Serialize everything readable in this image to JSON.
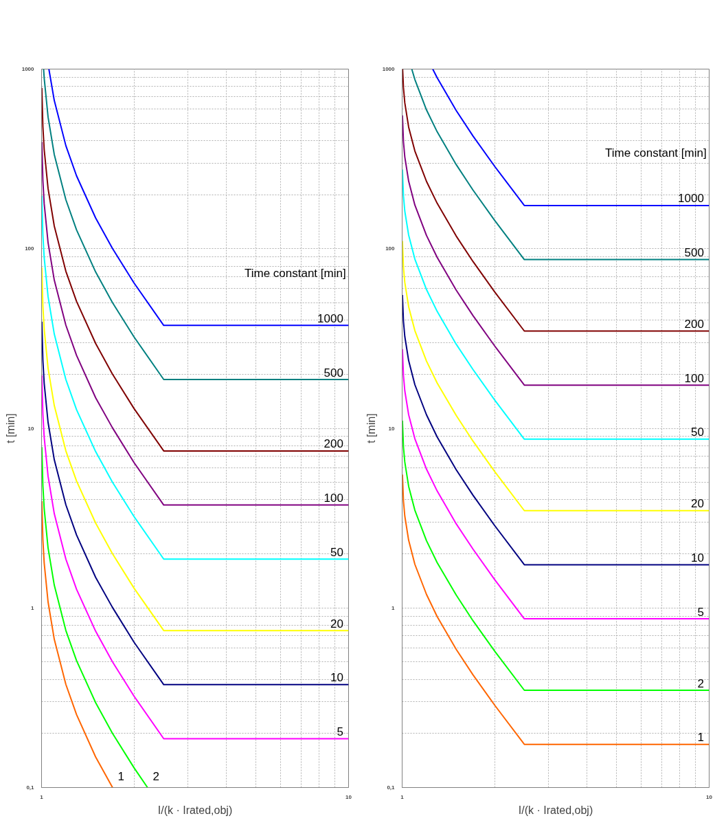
{
  "chart_data": [
    {
      "type": "line",
      "xlabel": "I/(k · Irated,obj)",
      "ylabel": "t [min]",
      "legend_title": "Time constant [min]",
      "log": "xy",
      "grid": true,
      "xlim": [
        1,
        10
      ],
      "ylim": [
        0.1,
        1000
      ],
      "xticks": [
        1,
        10
      ],
      "yticks": [
        {
          "value": 0.1,
          "label": "0,1"
        },
        1,
        10,
        100,
        1000
      ],
      "series": [
        {
          "name": "1000",
          "color": "#0000ff",
          "x": [
            1.0566,
            1.1,
            1.2,
            1.3,
            1.5,
            1.7,
            2,
            2.5,
            10
          ],
          "values": [
            1000,
            669,
            374.7,
            254.6,
            148.4,
            100.6,
            64.5,
            37.4,
            37.4
          ]
        },
        {
          "name": "500",
          "color": "#008080",
          "x": [
            1.0155,
            1.02,
            1.05,
            1.1,
            1.2,
            1.3,
            1.5,
            1.7,
            2,
            2.5,
            10
          ],
          "values": [
            1000,
            891.5,
            541,
            334.5,
            187.4,
            127.3,
            74.2,
            50.3,
            32.3,
            18.7,
            18.7
          ]
        },
        {
          "name": "200",
          "color": "#800000",
          "x": [
            1.002,
            1.01,
            1.02,
            1.05,
            1.1,
            1.2,
            1.3,
            1.5,
            1.7,
            2,
            2.5,
            10
          ],
          "values": [
            786,
            478.6,
            356.6,
            216.4,
            133.8,
            74.9,
            50.9,
            29.7,
            20.1,
            12.9,
            7.48,
            7.48
          ]
        },
        {
          "name": "100",
          "color": "#800080",
          "x": [
            1.002,
            1.01,
            1.02,
            1.05,
            1.1,
            1.2,
            1.3,
            1.5,
            1.7,
            2,
            2.5,
            10
          ],
          "values": [
            393,
            239.3,
            178.3,
            108.2,
            66.9,
            37.5,
            25.5,
            14.8,
            10.1,
            6.45,
            3.74,
            3.74
          ]
        },
        {
          "name": "50",
          "color": "#00ffff",
          "x": [
            1.002,
            1.01,
            1.02,
            1.05,
            1.1,
            1.2,
            1.3,
            1.5,
            1.7,
            2,
            2.5,
            10
          ],
          "values": [
            197,
            119.7,
            89.2,
            54.1,
            33.5,
            18.7,
            12.7,
            7.42,
            5.03,
            3.23,
            1.87,
            1.87
          ]
        },
        {
          "name": "20",
          "color": "#ffff00",
          "x": [
            1.002,
            1.01,
            1.02,
            1.05,
            1.1,
            1.2,
            1.3,
            1.5,
            1.7,
            2,
            2.5,
            10
          ],
          "values": [
            78.6,
            47.9,
            35.7,
            21.6,
            13.4,
            7.49,
            5.09,
            2.97,
            2.01,
            1.29,
            0.748,
            0.748
          ]
        },
        {
          "name": "10",
          "color": "#000080",
          "x": [
            1.002,
            1.01,
            1.02,
            1.05,
            1.1,
            1.2,
            1.3,
            1.5,
            1.7,
            2,
            2.5,
            10
          ],
          "values": [
            39.3,
            23.9,
            17.8,
            10.8,
            6.69,
            3.75,
            2.55,
            1.48,
            1.01,
            0.645,
            0.374,
            0.374
          ]
        },
        {
          "name": "5",
          "color": "#ff00ff",
          "x": [
            1.002,
            1.01,
            1.02,
            1.05,
            1.1,
            1.2,
            1.3,
            1.5,
            1.7,
            2,
            2.5,
            10
          ],
          "values": [
            19.7,
            12.0,
            8.92,
            5.41,
            3.35,
            1.87,
            1.27,
            0.742,
            0.503,
            0.323,
            0.187,
            0.187
          ]
        },
        {
          "name": "2",
          "color": "#00ff00",
          "x": [
            1.002,
            1.01,
            1.02,
            1.05,
            1.1,
            1.2,
            1.3,
            1.5,
            1.7,
            2,
            2.214
          ],
          "values": [
            7.86,
            4.79,
            3.57,
            2.16,
            1.34,
            0.749,
            0.509,
            0.297,
            0.201,
            0.129,
            0.1
          ]
        },
        {
          "name": "1",
          "color": "#ff6600",
          "x": [
            1.002,
            1.01,
            1.02,
            1.05,
            1.1,
            1.2,
            1.3,
            1.5,
            1.703
          ],
          "values": [
            3.93,
            2.39,
            1.78,
            1.08,
            0.669,
            0.375,
            0.255,
            0.148,
            0.1
          ]
        }
      ]
    },
    {
      "type": "line",
      "xlabel": "I/(k · Irated,obj)",
      "ylabel": "t [min]",
      "legend_title": "Time constant [min]",
      "log": "xy",
      "grid": true,
      "xlim": [
        1,
        10
      ],
      "ylim": [
        0.1,
        1000
      ],
      "xticks": [
        1,
        10
      ],
      "yticks": [
        {
          "value": 0.1,
          "label": "0,1"
        },
        1,
        10,
        100,
        1000
      ],
      "series": [
        {
          "name": "1000",
          "color": "#0000ff",
          "x": [
            1.258,
            1.3,
            1.5,
            1.7,
            2,
            2.5,
            10
          ],
          "values": [
            1000,
            896,
            588,
            425,
            288,
            174,
            174
          ]
        },
        {
          "name": "500",
          "color": "#008080",
          "x": [
            1.075,
            1.1,
            1.2,
            1.3,
            1.5,
            1.7,
            2,
            2.5,
            10
          ],
          "values": [
            1000,
            875.5,
            593,
            448,
            294,
            212.5,
            144,
            87,
            87
          ]
        },
        {
          "name": "200",
          "color": "#800000",
          "x": [
            1.0034,
            1.01,
            1.02,
            1.05,
            1.1,
            1.2,
            1.3,
            1.5,
            1.7,
            2,
            2.5,
            10
          ],
          "values": [
            1000,
            785.4,
            649.6,
            475,
            350.2,
            237.2,
            179.2,
            117.6,
            85,
            57.6,
            34.8,
            34.8
          ]
        },
        {
          "name": "100",
          "color": "#800080",
          "x": [
            1.002,
            1.01,
            1.02,
            1.05,
            1.1,
            1.2,
            1.3,
            1.5,
            1.7,
            2,
            2.5,
            10
          ],
          "values": [
            552.5,
            392.7,
            324.8,
            237.5,
            175.1,
            118.6,
            89.6,
            58.8,
            42.5,
            28.8,
            17.4,
            17.4
          ]
        },
        {
          "name": "50",
          "color": "#00ffff",
          "x": [
            1.002,
            1.01,
            1.02,
            1.05,
            1.1,
            1.2,
            1.3,
            1.5,
            1.7,
            2,
            2.5,
            10
          ],
          "values": [
            276,
            196,
            162,
            119,
            87.6,
            59.3,
            44.8,
            29.4,
            21.3,
            14.4,
            8.7,
            8.7
          ]
        },
        {
          "name": "20",
          "color": "#ffff00",
          "x": [
            1.002,
            1.01,
            1.02,
            1.05,
            1.1,
            1.2,
            1.3,
            1.5,
            1.7,
            2,
            2.5,
            10
          ],
          "values": [
            110.5,
            78.5,
            65,
            47.5,
            35,
            23.7,
            17.9,
            11.8,
            8.5,
            5.76,
            3.48,
            3.48
          ]
        },
        {
          "name": "10",
          "color": "#000080",
          "x": [
            1.002,
            1.01,
            1.02,
            1.05,
            1.1,
            1.2,
            1.3,
            1.5,
            1.7,
            2,
            2.5,
            10
          ],
          "values": [
            55.3,
            39.3,
            32.5,
            23.8,
            17.5,
            11.9,
            8.96,
            5.88,
            4.25,
            2.88,
            1.74,
            1.74
          ]
        },
        {
          "name": "5",
          "color": "#ff00ff",
          "x": [
            1.002,
            1.01,
            1.02,
            1.05,
            1.1,
            1.2,
            1.3,
            1.5,
            1.7,
            2,
            2.5,
            10
          ],
          "values": [
            27.6,
            19.6,
            16.2,
            11.9,
            8.76,
            5.93,
            4.48,
            2.94,
            2.13,
            1.44,
            0.87,
            0.87
          ]
        },
        {
          "name": "2",
          "color": "#00ff00",
          "x": [
            1.002,
            1.01,
            1.02,
            1.05,
            1.1,
            1.2,
            1.3,
            1.5,
            1.7,
            2,
            2.5,
            10
          ],
          "values": [
            11.05,
            7.85,
            6.5,
            4.75,
            3.5,
            2.37,
            1.79,
            1.18,
            0.85,
            0.576,
            0.348,
            0.348
          ]
        },
        {
          "name": "1",
          "color": "#ff6600",
          "x": [
            1.002,
            1.01,
            1.02,
            1.05,
            1.1,
            1.2,
            1.3,
            1.5,
            1.7,
            2,
            2.5,
            10
          ],
          "values": [
            5.53,
            3.93,
            3.25,
            2.38,
            1.75,
            1.19,
            0.896,
            0.588,
            0.425,
            0.288,
            0.174,
            0.174
          ]
        }
      ]
    }
  ]
}
